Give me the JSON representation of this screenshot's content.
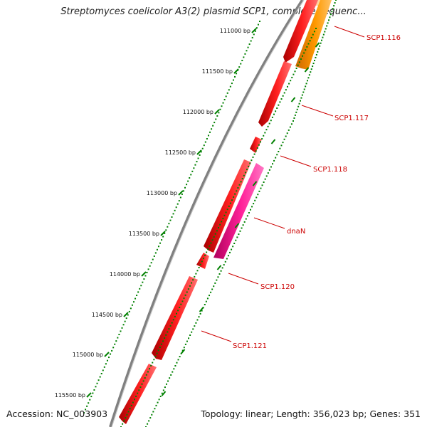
{
  "title": "Streptomyces coelicolor A3(2) plasmid SCP1, complete sequenc...",
  "footer": {
    "accession": "Accession: NC_003903",
    "summary": "Topology: linear; Length: 356,023 bp; Genes: 351"
  },
  "colors": {
    "backbone": "#808080",
    "gene_red": "#ff0000",
    "gene_orange": "#ff9900",
    "gene_pink": "#ff2299",
    "tick_green": "#008000",
    "label_red": "#cc0000"
  },
  "scale_ticks": [
    "111000 bp",
    "111500 bp",
    "112000 bp",
    "112500 bp",
    "113000 bp",
    "113500 bp",
    "114000 bp",
    "114500 bp",
    "115000 bp",
    "115500 bp"
  ],
  "genes": [
    {
      "name": "SCP1.116",
      "strand": "forward",
      "color": "gene_orange"
    },
    {
      "name": "SCP1.117",
      "strand": "forward",
      "color": "gene_red"
    },
    {
      "name": "SCP1.118",
      "strand": "forward",
      "color": "gene_red"
    },
    {
      "name": "dnaN",
      "strand": "reverse",
      "color": "gene_pink"
    },
    {
      "name": "SCP1.120",
      "strand": "forward",
      "color": "gene_red"
    },
    {
      "name": "SCP1.121",
      "strand": "forward",
      "color": "gene_red"
    }
  ]
}
